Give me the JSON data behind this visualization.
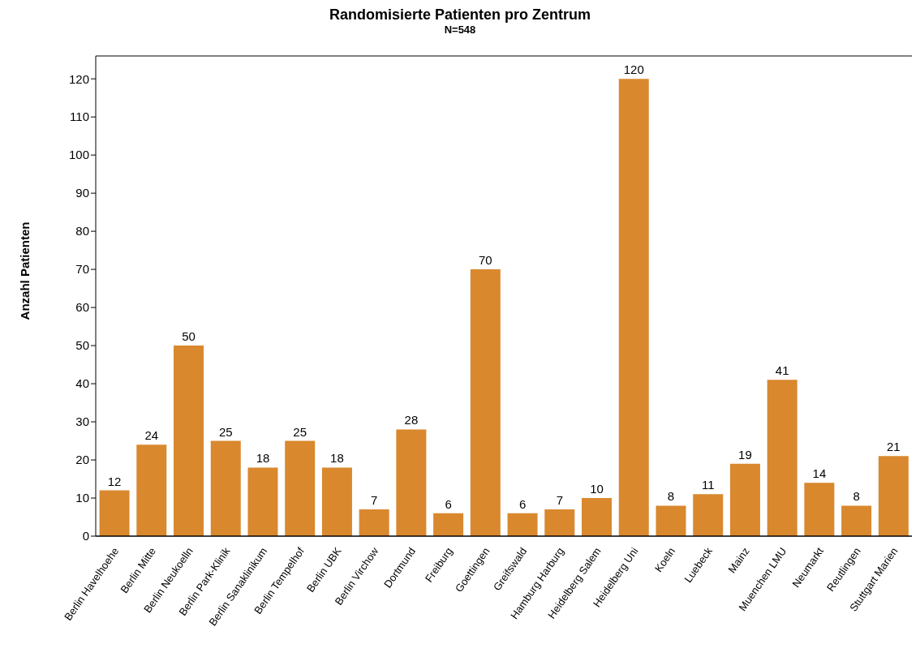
{
  "chart_data": {
    "type": "bar",
    "title": "Randomisierte Patienten pro Zentrum",
    "subtitle": "N=548",
    "ylabel": "Anzahl Patienten",
    "categories": [
      "Berlin Havelhoehe",
      "Berlin Mitte",
      "Berlin Neukoelln",
      "Berlin Park-Klinik",
      "Berlin Sanaklinikum",
      "Berlin Tempelhof",
      "Berlin UBK",
      "Berlin Virchow",
      "Dortmund",
      "Freiburg",
      "Goettingen",
      "Greifswald",
      "Hamburg Harburg",
      "Heidelberg Salem",
      "Heidelberg Uni",
      "Koeln",
      "Luebeck",
      "Mainz",
      "Muenchen LMU",
      "Neumarkt",
      "Reutlingen",
      "Stuttgart Marien"
    ],
    "values": [
      12,
      24,
      50,
      25,
      18,
      25,
      18,
      7,
      28,
      6,
      70,
      6,
      7,
      10,
      120,
      8,
      11,
      19,
      41,
      14,
      8,
      21
    ],
    "color": "#d9882e",
    "ylim": [
      0,
      126
    ],
    "yticks": [
      0,
      10,
      20,
      30,
      40,
      50,
      60,
      70,
      80,
      90,
      100,
      110,
      120
    ],
    "data_labels": true
  }
}
